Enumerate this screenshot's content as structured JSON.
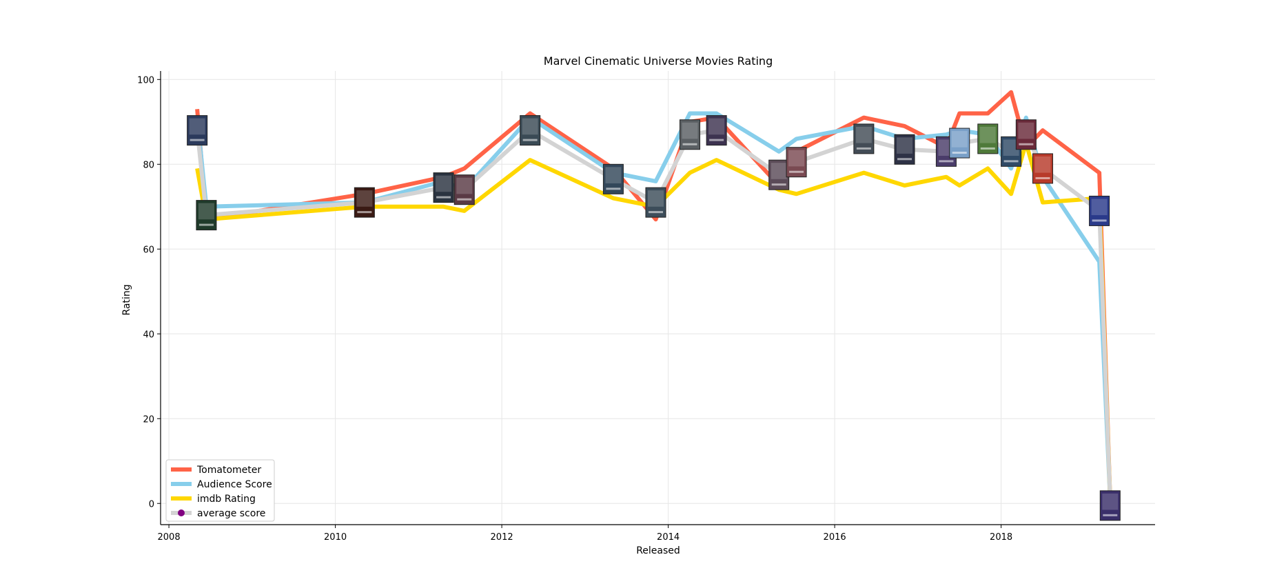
{
  "chart_data": {
    "type": "line",
    "title": "Marvel Cinematic Universe Movies Rating",
    "xlabel": "Released",
    "ylabel": "Rating",
    "xlim": [
      2007.9,
      2019.85
    ],
    "ylim": [
      -5,
      102
    ],
    "xticks": [
      2008,
      2010,
      2012,
      2014,
      2016,
      2018
    ],
    "yticks": [
      0,
      20,
      40,
      60,
      80,
      100
    ],
    "grid": true,
    "legend_position": "lower-left",
    "x": [
      2008.34,
      2008.45,
      2010.35,
      2011.3,
      2011.55,
      2012.34,
      2013.34,
      2013.85,
      2014.26,
      2014.58,
      2015.33,
      2015.54,
      2016.35,
      2016.84,
      2017.34,
      2017.5,
      2017.84,
      2018.12,
      2018.3,
      2018.5,
      2019.18,
      2019.31
    ],
    "series": [
      {
        "name": "Tomatometer",
        "color": "#ff6347",
        "values": [
          93,
          67,
          73,
          77,
          79,
          92,
          79,
          67,
          90,
          91,
          75,
          83,
          91,
          89,
          84,
          92,
          92,
          97,
          84,
          88,
          78,
          1
        ]
      },
      {
        "name": "Audience Score",
        "color": "#87ceeb",
        "values": [
          91,
          70,
          71,
          76,
          74,
          91,
          78,
          76,
          92,
          92,
          83,
          86,
          89,
          86,
          87,
          88,
          87,
          79,
          91,
          77,
          57,
          1
        ]
      },
      {
        "name": "imdb Rating",
        "color": "#ffd700",
        "values": [
          79,
          67,
          70,
          70,
          69,
          81,
          72,
          70,
          78,
          81,
          74,
          73,
          78,
          75,
          77,
          75,
          79,
          73,
          85,
          71,
          72,
          1
        ]
      },
      {
        "name": "average score",
        "color": "#d3d3d3",
        "marker_color": "#800080",
        "values": [
          88,
          68,
          71,
          74.5,
          74,
          88,
          76.5,
          71,
          87,
          88,
          77.5,
          80.5,
          86,
          83.5,
          83,
          85,
          86,
          83,
          87,
          79,
          69,
          1
        ]
      }
    ],
    "posters": [
      {
        "x": 2008.34,
        "y": 88,
        "color": "#2b3a5c"
      },
      {
        "x": 2008.45,
        "y": 68,
        "color": "#1f3a2a"
      },
      {
        "x": 2010.35,
        "y": 71,
        "color": "#3a1a14"
      },
      {
        "x": 2011.3,
        "y": 74.5,
        "color": "#2a3340"
      },
      {
        "x": 2011.55,
        "y": 74,
        "color": "#5a3a45"
      },
      {
        "x": 2012.34,
        "y": 88,
        "color": "#3a4a55"
      },
      {
        "x": 2013.34,
        "y": 76.5,
        "color": "#33475a"
      },
      {
        "x": 2013.85,
        "y": 71,
        "color": "#3c4d5a"
      },
      {
        "x": 2014.26,
        "y": 87,
        "color": "#5a5f63"
      },
      {
        "x": 2014.58,
        "y": 88,
        "color": "#3d3350"
      },
      {
        "x": 2015.33,
        "y": 77.5,
        "color": "#5b4b58"
      },
      {
        "x": 2015.54,
        "y": 80.5,
        "color": "#7a4a52"
      },
      {
        "x": 2016.35,
        "y": 86,
        "color": "#434c56"
      },
      {
        "x": 2016.84,
        "y": 83.5,
        "color": "#2e3246"
      },
      {
        "x": 2017.34,
        "y": 83,
        "color": "#4a3c6a"
      },
      {
        "x": 2017.5,
        "y": 85,
        "color": "#7aa0c8"
      },
      {
        "x": 2017.84,
        "y": 86,
        "color": "#4f7a3a"
      },
      {
        "x": 2018.12,
        "y": 83,
        "color": "#2f4a66"
      },
      {
        "x": 2018.3,
        "y": 87,
        "color": "#6a2a3a"
      },
      {
        "x": 2018.5,
        "y": 79,
        "color": "#b83a2a"
      },
      {
        "x": 2019.18,
        "y": 69,
        "color": "#2a3a8a"
      },
      {
        "x": 2019.31,
        "y": -0.5,
        "color": "#3a2f6a"
      }
    ]
  }
}
